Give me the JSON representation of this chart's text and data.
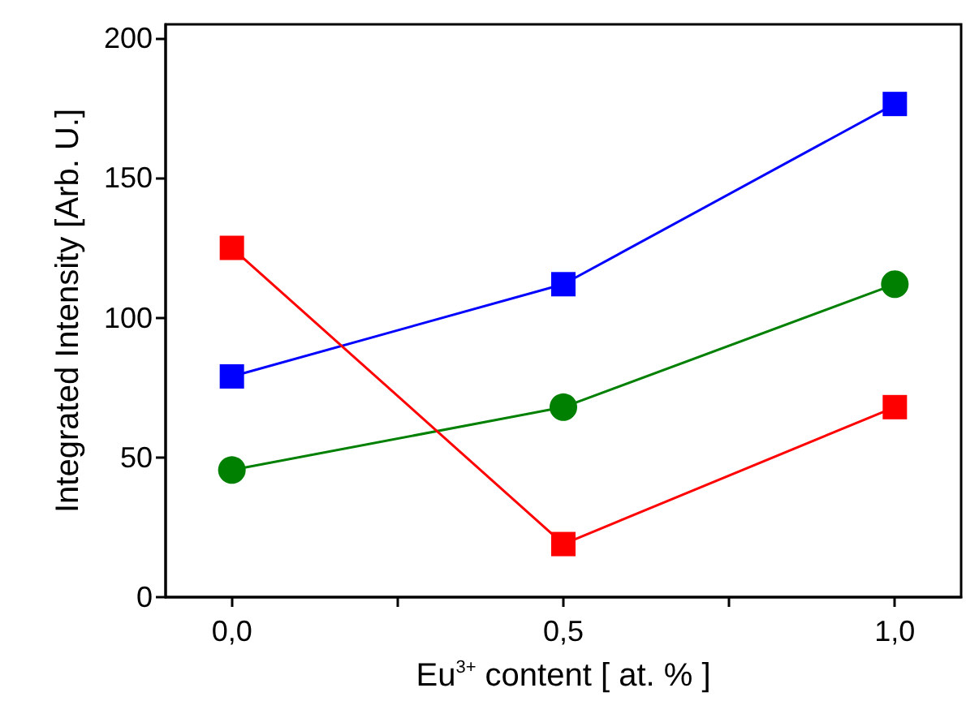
{
  "chart_data": {
    "type": "line",
    "xlabel": "Eu$^{3+}$ content [ at. % ]",
    "ylabel": "Integrated Intensity [Arb. U.]",
    "x": [
      0,
      0.5,
      1
    ],
    "series": [
      {
        "color": "#0000ff",
        "marker": "square",
        "values": [
          79,
          112,
          176.5
        ]
      },
      {
        "color": "#008000",
        "marker": "circle",
        "values": [
          45.5,
          68,
          112
        ]
      },
      {
        "color": "#ff0000",
        "marker": "square",
        "values": [
          125,
          19,
          68
        ]
      }
    ],
    "xlim": [
      -0.1,
      1.1
    ],
    "xticks": [
      {
        "value": 0,
        "label": "0,0"
      },
      {
        "value": 0.25,
        "label": null
      },
      {
        "value": 0.5,
        "label": "0,5"
      },
      {
        "value": 0.75,
        "label": null
      },
      {
        "value": 1,
        "label": "1,0"
      }
    ],
    "ylim": [
      0,
      205
    ],
    "yticks": [
      0,
      50,
      100,
      150,
      200
    ],
    "grid": false,
    "line_style": "solid"
  }
}
